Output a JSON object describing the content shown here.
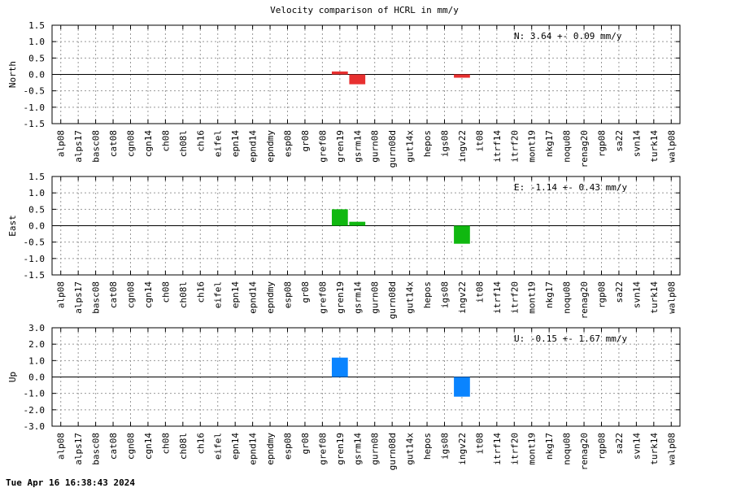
{
  "title": "Velocity comparison of HCRL in mm/y",
  "timestamp": "Tue Apr 16 16:38:43 2024",
  "chart_data": [
    {
      "type": "bar",
      "ylabel": "North",
      "ylim": [
        -1.5,
        1.5
      ],
      "yticks": [
        "1.5",
        "1.0",
        "0.5",
        "0.0",
        "-0.5",
        "-1.0",
        "-1.5"
      ],
      "grid": true,
      "color": "#e83030",
      "annotation": "N:   3.64 +-  0.09 mm/y",
      "categories": [
        "alp08",
        "alps17",
        "basc08",
        "cat08",
        "cgn08",
        "cgn14",
        "ch08",
        "ch08l",
        "ch16",
        "eifel",
        "epn14",
        "epnd14",
        "epndmy",
        "esp08",
        "gr08",
        "gref08",
        "gren19",
        "gsrm14",
        "gurn08",
        "gurn08d",
        "gut14x",
        "hepos",
        "igs08",
        "ingv22",
        "it08",
        "itrf14",
        "itrf20",
        "mont19",
        "nkg17",
        "noqu08",
        "renag20",
        "rgp08",
        "sa22",
        "svn14",
        "turk14",
        "walp08"
      ],
      "values": [
        0,
        0,
        0,
        0,
        0,
        0,
        0,
        0,
        0,
        0,
        0,
        0,
        0,
        0,
        0,
        0,
        0.09,
        -0.3,
        0,
        0,
        0,
        0,
        0,
        -0.1,
        0,
        0,
        0,
        0,
        0,
        0,
        0,
        0,
        0,
        0,
        0,
        0
      ]
    },
    {
      "type": "bar",
      "ylabel": "East",
      "ylim": [
        -1.5,
        1.5
      ],
      "yticks": [
        "1.5",
        "1.0",
        "0.5",
        "0.0",
        "-0.5",
        "-1.0",
        "-1.5"
      ],
      "grid": true,
      "color": "#10b810",
      "annotation": "E:  -1.14 +-  0.43 mm/y",
      "categories": [
        "alp08",
        "alps17",
        "basc08",
        "cat08",
        "cgn08",
        "cgn14",
        "ch08",
        "ch08l",
        "ch16",
        "eifel",
        "epn14",
        "epnd14",
        "epndmy",
        "esp08",
        "gr08",
        "gref08",
        "gren19",
        "gsrm14",
        "gurn08",
        "gurn08d",
        "gut14x",
        "hepos",
        "igs08",
        "ingv22",
        "it08",
        "itrf14",
        "itrf20",
        "mont19",
        "nkg17",
        "noqu08",
        "renag20",
        "rgp08",
        "sa22",
        "svn14",
        "turk14",
        "walp08"
      ],
      "values": [
        0,
        0,
        0,
        0,
        0,
        0,
        0,
        0,
        0,
        0,
        0,
        0,
        0,
        0,
        0,
        0,
        0.5,
        0.12,
        0,
        0,
        0,
        0,
        0,
        -0.55,
        0,
        0,
        0,
        0,
        0,
        0,
        0,
        0,
        0,
        0,
        0,
        0
      ]
    },
    {
      "type": "bar",
      "ylabel": "Up",
      "ylim": [
        -3.0,
        3.0
      ],
      "yticks": [
        "3.0",
        "2.0",
        "1.0",
        "0.0",
        "-1.0",
        "-2.0",
        "-3.0"
      ],
      "grid": true,
      "color": "#0a84ff",
      "annotation": "U:  -0.15 +-  1.67 mm/y",
      "categories": [
        "alp08",
        "alps17",
        "basc08",
        "cat08",
        "cgn08",
        "cgn14",
        "ch08",
        "ch08l",
        "ch16",
        "eifel",
        "epn14",
        "epnd14",
        "epndmy",
        "esp08",
        "gr08",
        "gref08",
        "gren19",
        "gsrm14",
        "gurn08",
        "gurn08d",
        "gut14x",
        "hepos",
        "igs08",
        "ingv22",
        "it08",
        "itrf14",
        "itrf20",
        "mont19",
        "nkg17",
        "noqu08",
        "renag20",
        "rgp08",
        "sa22",
        "svn14",
        "turk14",
        "walp08"
      ],
      "values": [
        0,
        0,
        0,
        0,
        0,
        0,
        0,
        0,
        0,
        0,
        0,
        0,
        0,
        0,
        0,
        0,
        1.18,
        0,
        0,
        0,
        0,
        0,
        0,
        -1.2,
        0,
        0,
        0,
        0,
        0,
        0,
        0,
        0,
        0,
        0,
        0,
        0
      ]
    }
  ]
}
